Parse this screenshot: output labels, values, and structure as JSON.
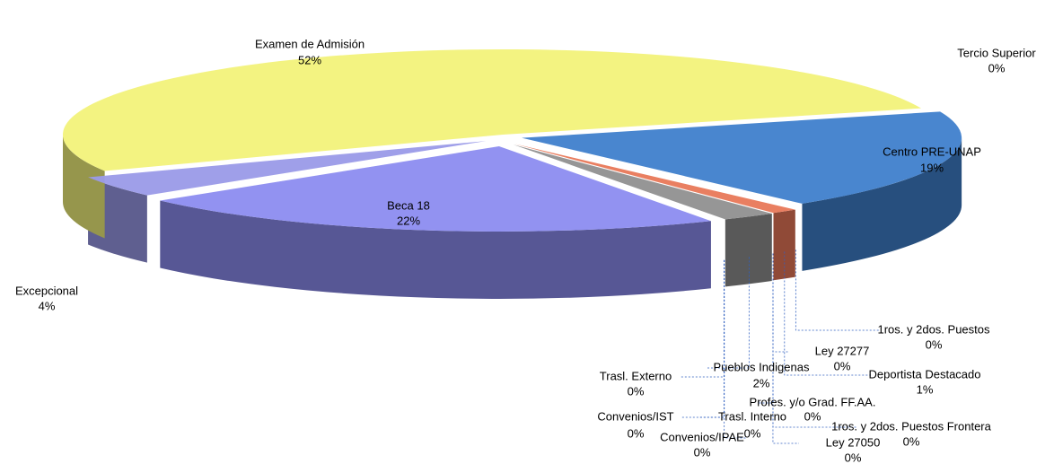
{
  "chart_data": {
    "type": "pie",
    "categories": [
      "Tercio Superior",
      "Centro PRE-UNAP",
      "1ros. y 2dos. Puestos",
      "Deportista Destacado",
      "1ros. y 2dos. Puestos Frontera",
      "Ley 27050",
      "Profes. y/o Grad. FF.AA.",
      "Ley 27277",
      "Pueblos Indigenas",
      "Trasl. Interno",
      "Convenios/IPAE",
      "Convenios/IST",
      "Trasl. Externo",
      "Beca 18",
      "Excepcional",
      "Examen de Admisión"
    ],
    "values": [
      0,
      19,
      0,
      1,
      0,
      0,
      0,
      0,
      2,
      0,
      0,
      0,
      0,
      22,
      4,
      52
    ],
    "value_labels": [
      "0%",
      "19%",
      "0%",
      "1%",
      "0%",
      "0%",
      "0%",
      "0%",
      "2%",
      "0%",
      "0%",
      "0%",
      "0%",
      "22%",
      "4%",
      "52%"
    ],
    "colors": [
      "#5a3f8c",
      "#3f7fcc",
      "#e8a040",
      "#e87858",
      "#a84020",
      "#7a7a7a",
      "#8a8a8a",
      "#c86048",
      "#909090",
      "#e000e0",
      "#606060",
      "#00a0a0",
      "#00b0b0",
      "#8c8cf0",
      "#9a9ae8",
      "#f2f27a"
    ]
  }
}
